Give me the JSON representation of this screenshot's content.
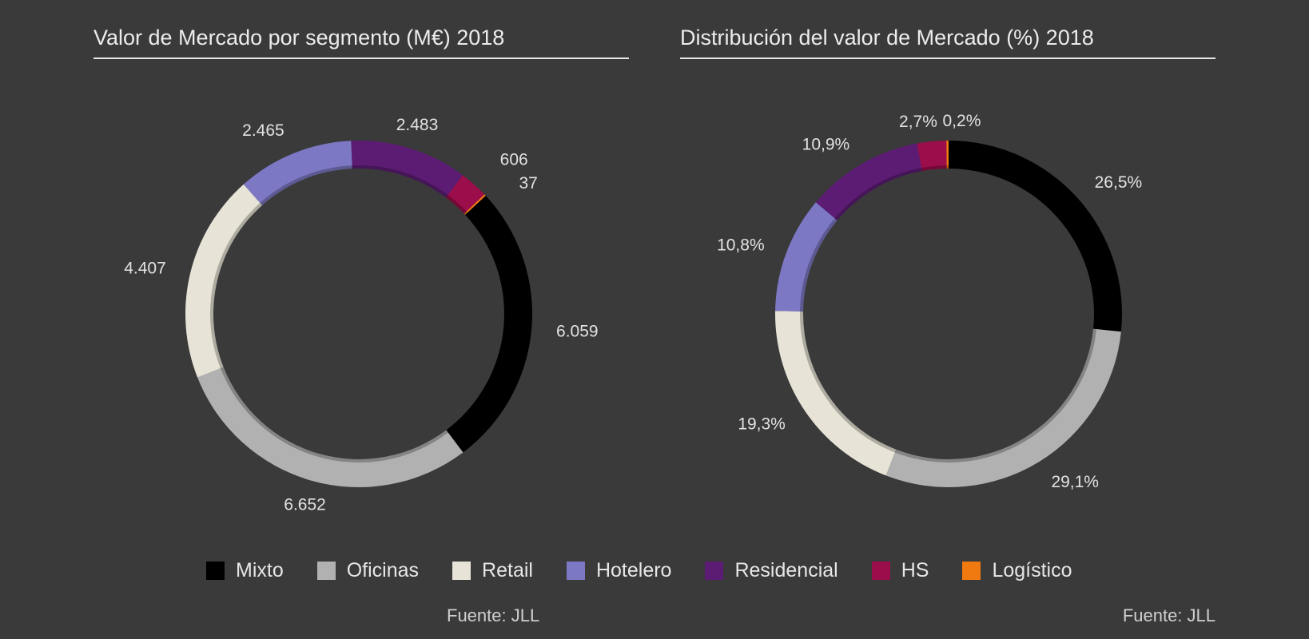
{
  "chart_data": [
    {
      "type": "pie",
      "donut": true,
      "title": "Valor de Mercado por segmento (M€) 2018",
      "categories": [
        "Mixto",
        "Oficinas",
        "Retail",
        "Hotelero",
        "Residencial",
        "HS",
        "Logístico"
      ],
      "values": [
        6059,
        6652,
        4407,
        2465,
        2483,
        606,
        37
      ],
      "data_labels": [
        "6.059",
        "6.652",
        "4.407",
        "2.465",
        "2.483",
        "606",
        "37"
      ],
      "start_category": "Mixto",
      "source": "Fuente: JLL"
    },
    {
      "type": "pie",
      "donut": true,
      "title": "Distribución del valor de Mercado (%) 2018",
      "categories": [
        "Mixto",
        "Oficinas",
        "Retail",
        "Hotelero",
        "Residencial",
        "HS",
        "Logístico"
      ],
      "values": [
        26.5,
        29.1,
        19.3,
        10.8,
        10.9,
        2.7,
        0.2
      ],
      "data_labels": [
        "26,5%",
        "29,1%",
        "19,3%",
        "10,8%",
        "10,9%",
        "2,7%",
        "0,2%"
      ],
      "start_category": "Mixto",
      "source": "Fuente: JLL"
    }
  ],
  "legend": [
    {
      "label": "Mixto",
      "color": "#000000"
    },
    {
      "label": "Oficinas",
      "color": "#b1b1b1"
    },
    {
      "label": "Retail",
      "color": "#e7e3d6"
    },
    {
      "label": "Hotelero",
      "color": "#7d78c4"
    },
    {
      "label": "Residencial",
      "color": "#5c1c74"
    },
    {
      "label": "HS",
      "color": "#9b0d4b"
    },
    {
      "label": "Logístico",
      "color": "#f07a10"
    }
  ],
  "colors": {
    "background": "#3a3a3a",
    "text": "#e6e6e6"
  }
}
